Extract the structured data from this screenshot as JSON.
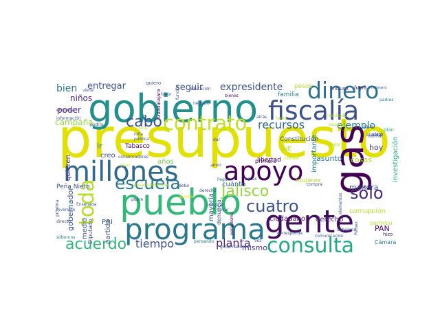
{
  "words": [
    {
      "text": "presupuesto",
      "color": "#e1e000"
    },
    {
      "text": "gobierno",
      "color": "#21908d"
    },
    {
      "text": "pueblo",
      "color": "#35b779"
    },
    {
      "text": "gas",
      "color": "#440154"
    },
    {
      "text": "gente",
      "color": "#3f0f5d"
    },
    {
      "text": "programa",
      "color": "#2a788e"
    },
    {
      "text": "millones",
      "color": "#31688e"
    },
    {
      "text": "apoyo",
      "color": "#440154"
    },
    {
      "text": "fiscalía",
      "color": "#3b528b"
    },
    {
      "text": "dinero",
      "color": "#2c738e"
    },
    {
      "text": "consulta",
      "color": "#22a884"
    },
    {
      "text": "contrato",
      "color": "#c2df23"
    },
    {
      "text": "escuela",
      "color": "#2a788e"
    },
    {
      "text": "Jalisco",
      "color": "#95d840"
    },
    {
      "text": "cuatro",
      "color": "#3b528b"
    },
    {
      "text": "sólo",
      "color": "#482878"
    },
    {
      "text": "toda",
      "color": "#b5de2b"
    },
    {
      "text": "acuerdo",
      "color": "#35b779"
    },
    {
      "text": "cabo",
      "color": "#3b528b"
    },
    {
      "text": "recursos",
      "color": "#31688e"
    },
    {
      "text": "ejemplo",
      "color": "#26828e"
    },
    {
      "text": "expresidente",
      "color": "#3b528b"
    },
    {
      "text": "tiempo",
      "color": "#3b528b"
    },
    {
      "text": "planta",
      "color": "#482878"
    },
    {
      "text": "entregar",
      "color": "#3b528b"
    },
    {
      "text": "seguir",
      "color": "#3b528b"
    },
    {
      "text": "bien",
      "color": "#2a788e"
    },
    {
      "text": "niños",
      "color": "#472d7b"
    },
    {
      "text": "poder",
      "color": "#472d7b"
    },
    {
      "text": "campaña",
      "color": "#95d840"
    },
    {
      "text": "hoy",
      "color": "#414487"
    },
    {
      "text": "PAN",
      "color": "#440154"
    },
    {
      "text": "mismo",
      "color": "#46337e"
    },
    {
      "text": "cuánto",
      "color": "#31688e"
    },
    {
      "text": "asunto",
      "color": "#2a788e"
    },
    {
      "text": "cosas",
      "color": "#addc30"
    },
    {
      "text": "manera",
      "color": "#3b528b"
    },
    {
      "text": "gobernador",
      "color": "#3b528b"
    },
    {
      "text": "creo",
      "color": "#3b528b"
    },
    {
      "text": "PRI",
      "color": "#3b528b"
    },
    {
      "text": "ir",
      "color": "#31688e"
    },
    {
      "text": "años",
      "color": "#73d055"
    },
    {
      "text": "Tabasco",
      "color": "#440154"
    },
    {
      "text": "importante",
      "color": "#26828e"
    },
    {
      "text": "investigación",
      "color": "#2ab07f"
    },
    {
      "text": "corrupción",
      "color": "#b8de29"
    },
    {
      "text": "ciudadano",
      "color": "#440154"
    },
    {
      "text": "derecho",
      "color": "#482878"
    },
    {
      "text": "mayoría",
      "color": "#31688e"
    },
    {
      "text": "medio",
      "color": "#3b528b"
    },
    {
      "text": "partido",
      "color": "#3b528b"
    },
    {
      "text": "quieren",
      "color": "#472d7b"
    },
    {
      "text": "Diputado",
      "color": "#3b528b"
    },
    {
      "text": "Peña Nieto",
      "color": "#3b528b"
    },
    {
      "text": "libertad",
      "color": "#440154"
    },
    {
      "text": "pesos",
      "color": "#b5de2b"
    },
    {
      "text": "familia",
      "color": "#26828e"
    },
    {
      "text": "Constitución",
      "color": "#3b528b"
    },
    {
      "text": "mujeres",
      "color": "#b8de29"
    },
    {
      "text": "primero",
      "color": "#440154"
    },
    {
      "text": "INE",
      "color": "#b5de2b"
    },
    {
      "text": "denuncia",
      "color": "#3b528b"
    },
    {
      "text": "sino",
      "color": "#3b528b"
    },
    {
      "text": "permiso",
      "color": "#b8de29"
    },
    {
      "text": "Cámara",
      "color": "#2a788e"
    },
    {
      "text": "hizo",
      "color": "#482878"
    },
    {
      "text": "incluso",
      "color": "#472d7b"
    },
    {
      "text": "fuero",
      "color": "#440154"
    },
    {
      "text": "hermano",
      "color": "#3b528b"
    },
    {
      "text": "padres",
      "color": "#2a788e"
    },
    {
      "text": "quiero",
      "color": "#3b528b"
    },
    {
      "text": "viene",
      "color": "#3b528b"
    },
    {
      "text": "información",
      "color": "#3b528b"
    },
    {
      "text": "empresa",
      "color": "#472d7b"
    },
    {
      "text": "podría",
      "color": "#3b528b"
    },
    {
      "text": "Guadalajara",
      "color": "#440154"
    },
    {
      "text": "función",
      "color": "#3b528b"
    },
    {
      "text": "educación",
      "color": "#3b528b"
    },
    {
      "text": "bienes",
      "color": "#440154"
    },
    {
      "text": "negocio",
      "color": "#3b528b"
    },
    {
      "text": "atrás",
      "color": "#3b528b"
    },
    {
      "text": "pública",
      "color": "#3b528b"
    },
    {
      "text": "niña",
      "color": "#3b528b"
    },
    {
      "text": "conservadores",
      "color": "#3b528b"
    },
    {
      "text": "gran",
      "color": "#b5de2b"
    },
    {
      "text": "desarrollo",
      "color": "#b5de2b"
    },
    {
      "text": "buscar",
      "color": "#b5de2b"
    },
    {
      "text": "debe",
      "color": "#3b528b"
    },
    {
      "text": "pobre",
      "color": "#3b528b"
    },
    {
      "text": "aprobó",
      "color": "#fde725"
    },
    {
      "text": "Ensenada",
      "color": "#3b528b"
    },
    {
      "text": "inversión",
      "color": "#3b528b"
    },
    {
      "text": "próxima",
      "color": "#3b528b"
    },
    {
      "text": "directo",
      "color": "#3b528b"
    },
    {
      "text": "sobornos",
      "color": "#2a788e"
    },
    {
      "text": "gobernadores",
      "color": "#3b528b"
    },
    {
      "text": "pensando",
      "color": "#2a788e"
    },
    {
      "text": "periodismo",
      "color": "#440154"
    },
    {
      "text": "llevar",
      "color": "#3b528b"
    },
    {
      "text": "comprar",
      "color": "#3b528b"
    },
    {
      "text": "corresponde",
      "color": "#3b528b"
    },
    {
      "text": "comunicación",
      "color": "#3b528b"
    },
    {
      "text": "atender",
      "color": "#3b528b"
    },
    {
      "text": "informar",
      "color": "#3b528b"
    },
    {
      "text": "Pemex",
      "color": "#3b528b"
    },
    {
      "text": "elementos",
      "color": "#3b528b"
    },
    {
      "text": "debemos",
      "color": "#3b528b"
    },
    {
      "text": "mejor",
      "color": "#b5de2b"
    },
    {
      "text": "cambio",
      "color": "#b5de2b"
    },
    {
      "text": "agua",
      "color": "#3b528b"
    },
    {
      "text": "plan",
      "color": "#35b779"
    },
    {
      "text": "becas",
      "color": "#3b528b"
    },
    {
      "text": "vez",
      "color": "#3b528b"
    },
    {
      "text": "amor",
      "color": "#3b528b"
    },
    {
      "text": "dar",
      "color": "#3b528b"
    },
    {
      "text": "cada",
      "color": "#b5de2b"
    },
    {
      "text": "favor",
      "color": "#3b528b"
    },
    {
      "text": "tenía",
      "color": "#b5de2b"
    },
    {
      "text": "Lino",
      "color": "#b5de2b"
    },
    {
      "text": "segundo",
      "color": "#b5de2b"
    },
    {
      "text": "resultado",
      "color": "#b5de2b"
    },
    {
      "text": "llegar",
      "color": "#2a788e"
    },
    {
      "text": "compra",
      "color": "#3b528b"
    },
    {
      "text": "derecho2",
      "color": "#3b528b"
    }
  ]
}
